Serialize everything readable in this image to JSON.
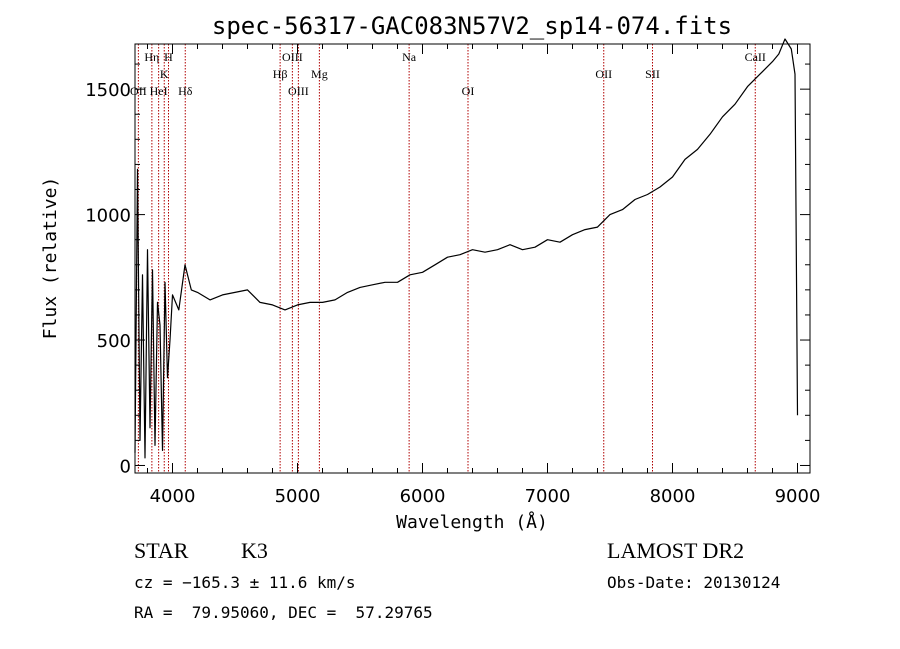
{
  "chart_data": {
    "type": "line",
    "title": "spec-56317-GAC083N57V2_sp14-074.fits",
    "xlabel": "Wavelength (Å)",
    "ylabel": "Flux (relative)",
    "xlim": [
      3700,
      9100
    ],
    "ylim": [
      -30,
      1680
    ],
    "xticks": [
      "4000",
      "5000",
      "6000",
      "7000",
      "8000",
      "9000"
    ],
    "yticks": [
      "0",
      "500",
      "1000",
      "1500"
    ],
    "grid": false,
    "series": [
      {
        "x": [
          3700,
          3720,
          3740,
          3760,
          3780,
          3800,
          3820,
          3840,
          3860,
          3880,
          3900,
          3920,
          3940,
          3960,
          3980,
          4000,
          4050,
          4100,
          4150,
          4200,
          4300,
          4400,
          4500,
          4600,
          4700,
          4800,
          4900,
          5000,
          5100,
          5200,
          5300,
          5400,
          5500,
          5600,
          5700,
          5800,
          5900,
          6000,
          6100,
          6200,
          6300,
          6400,
          6500,
          6600,
          6700,
          6800,
          6900,
          7000,
          7100,
          7200,
          7300,
          7400,
          7500,
          7600,
          7700,
          7800,
          7900,
          8000,
          8100,
          8200,
          8300,
          8400,
          8500,
          8600,
          8700,
          8800,
          8850,
          8900,
          8950,
          8980,
          9000
        ],
        "values": [
          50,
          1180,
          100,
          760,
          30,
          860,
          150,
          780,
          80,
          650,
          560,
          60,
          730,
          350,
          500,
          680,
          620,
          800,
          700,
          690,
          660,
          680,
          690,
          700,
          650,
          640,
          620,
          640,
          650,
          650,
          660,
          690,
          710,
          720,
          730,
          730,
          760,
          770,
          800,
          830,
          840,
          860,
          850,
          860,
          880,
          860,
          870,
          900,
          890,
          920,
          940,
          950,
          1000,
          1020,
          1060,
          1080,
          1110,
          1150,
          1220,
          1260,
          1320,
          1390,
          1440,
          1510,
          1560,
          1610,
          1640,
          1700,
          1660,
          1560,
          200
        ]
      }
    ],
    "lines": [
      {
        "label": "OII",
        "x": 3727,
        "row": 3
      },
      {
        "label": "Hη",
        "x": 3835,
        "row": 1
      },
      {
        "label": "HeI",
        "x": 3889,
        "row": 3
      },
      {
        "label": "K",
        "x": 3934,
        "row": 2
      },
      {
        "label": "H",
        "x": 3968,
        "row": 1
      },
      {
        "label": "Hδ",
        "x": 4102,
        "row": 3
      },
      {
        "label": "Hβ",
        "x": 4861,
        "row": 2
      },
      {
        "label": "OIII",
        "x": 4959,
        "row": 1
      },
      {
        "label": "OIII",
        "x": 5007,
        "row": 3
      },
      {
        "label": "Mg",
        "x": 5175,
        "row": 2
      },
      {
        "label": "Na",
        "x": 5893,
        "row": 1
      },
      {
        "label": "OI",
        "x": 6364,
        "row": 3
      },
      {
        "label": "OII",
        "x": 7450,
        "row": 2
      },
      {
        "label": "SII",
        "x": 7840,
        "row": 2
      },
      {
        "label": "CaII",
        "x": 8662,
        "row": 1
      }
    ]
  },
  "footer": {
    "object_class": "STAR",
    "subclass": "K3",
    "redshift": "cz = −165.3 ± 11.6 km/s",
    "coordinates": "RA =  79.95060, DEC =  57.29765",
    "survey": "LAMOST DR2",
    "obs_date": "Obs-Date: 20130124"
  }
}
